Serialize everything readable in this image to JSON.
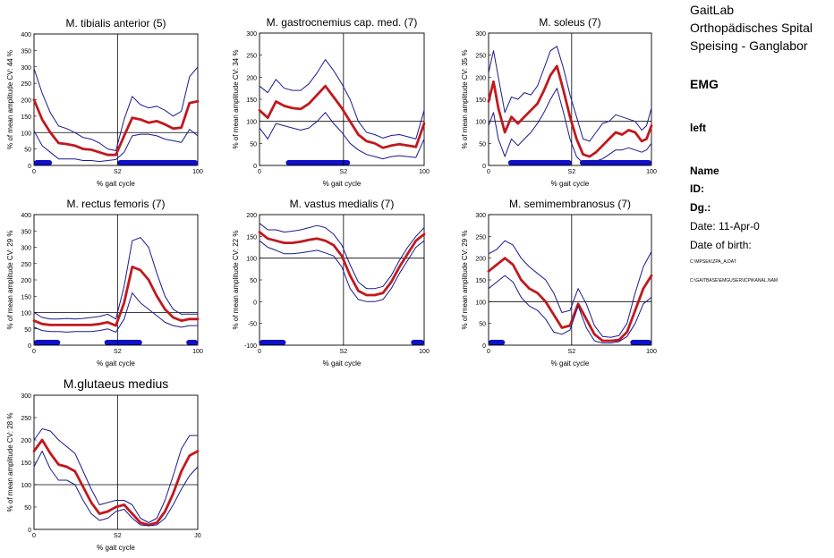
{
  "header": {
    "lab_lines": [
      "GaitLab",
      "Orthopädisches Spital",
      "Speising - Ganglabor"
    ],
    "section": "EMG",
    "side": "left",
    "name_label": "Name",
    "id_label": "ID:",
    "dg_label": "Dg.:",
    "date_line": "Date: 11-Apr-0",
    "dob_line": "Date of birth:",
    "path1": "C:\\MPSEK\\ZPA_A.DAT",
    "path2": "C:\\GAITBASE\\EMGUSER\\ICP\\KANAL.NAM"
  },
  "colors": {
    "mean_line": "#c0191e",
    "sd_lines": "#1a1a8c",
    "stance_bar": "#1010c8",
    "axes": "#000000"
  },
  "chart_data": [
    {
      "type": "line",
      "title": "M. tibialis anterior (5)",
      "ylabel": "% of mean amplitude  CV: 44 %",
      "xlabel": "% gait cycle",
      "x_ticks": [
        "0",
        "S2",
        "100"
      ],
      "y_ticks": [
        "0",
        "50",
        "100",
        "150",
        "200",
        "250",
        "300",
        "350",
        "400"
      ],
      "ylim": [
        0,
        400
      ],
      "xlim": [
        0,
        100
      ],
      "refline_y": 100,
      "refline_x_pct": 51,
      "stance_bars": [
        [
          0,
          11
        ],
        [
          51,
          100
        ]
      ],
      "x": [
        0,
        5,
        10,
        15,
        20,
        25,
        30,
        35,
        40,
        45,
        50,
        55,
        60,
        65,
        70,
        75,
        80,
        85,
        90,
        95,
        100
      ],
      "series": [
        {
          "name": "mean",
          "values": [
            200,
            140,
            100,
            68,
            65,
            60,
            50,
            48,
            40,
            32,
            32,
            90,
            145,
            140,
            130,
            135,
            125,
            112,
            115,
            190,
            195
          ]
        },
        {
          "name": "upper",
          "values": [
            295,
            220,
            160,
            120,
            112,
            100,
            85,
            80,
            68,
            50,
            45,
            140,
            210,
            185,
            175,
            180,
            168,
            150,
            165,
            270,
            300
          ]
        },
        {
          "name": "lower",
          "values": [
            105,
            60,
            40,
            20,
            20,
            20,
            15,
            15,
            12,
            15,
            18,
            40,
            90,
            95,
            95,
            90,
            80,
            75,
            70,
            110,
            90
          ]
        }
      ]
    },
    {
      "type": "line",
      "title": "M. gastrocnemius cap. med. (7)",
      "ylabel": "% of mean amplitude  CV: 34 %",
      "xlabel": "% gait cycle",
      "x_ticks": [
        "0",
        "S2",
        "100"
      ],
      "y_ticks": [
        "0",
        "50",
        "100",
        "150",
        "200",
        "250",
        "300"
      ],
      "ylim": [
        0,
        300
      ],
      "xlim": [
        0,
        100
      ],
      "refline_y": 100,
      "refline_x_pct": 51,
      "stance_bars": [
        [
          16,
          55
        ]
      ],
      "x": [
        0,
        5,
        10,
        15,
        20,
        25,
        30,
        35,
        40,
        45,
        50,
        55,
        60,
        65,
        70,
        75,
        80,
        85,
        90,
        95,
        100
      ],
      "series": [
        {
          "name": "mean",
          "values": [
            125,
            108,
            145,
            135,
            130,
            128,
            140,
            160,
            180,
            155,
            130,
            100,
            70,
            55,
            50,
            40,
            45,
            48,
            45,
            42,
            95
          ]
        },
        {
          "name": "upper",
          "values": [
            180,
            165,
            195,
            175,
            170,
            170,
            185,
            210,
            240,
            215,
            185,
            150,
            100,
            75,
            70,
            62,
            68,
            70,
            65,
            60,
            125
          ]
        },
        {
          "name": "lower",
          "values": [
            85,
            60,
            95,
            90,
            85,
            80,
            85,
            100,
            120,
            95,
            75,
            50,
            35,
            25,
            20,
            15,
            20,
            22,
            20,
            18,
            60
          ]
        }
      ]
    },
    {
      "type": "line",
      "title": "M. soleus (7)",
      "ylabel": "% of mean amplitude  CV: 35 %",
      "xlabel": "% gait cycle",
      "x_ticks": [
        "0",
        "S2",
        "100"
      ],
      "y_ticks": [
        "0",
        "50",
        "100",
        "150",
        "200",
        "250",
        "300"
      ],
      "ylim": [
        0,
        300
      ],
      "xlim": [
        0,
        100
      ],
      "refline_y": 100,
      "refline_x_pct": 51,
      "stance_bars": [
        [
          12,
          51
        ],
        [
          56,
          100
        ]
      ],
      "x": [
        0,
        3,
        6,
        10,
        14,
        18,
        22,
        26,
        30,
        34,
        38,
        42,
        46,
        50,
        54,
        58,
        62,
        66,
        70,
        74,
        78,
        82,
        86,
        90,
        94,
        97,
        100
      ],
      "series": [
        {
          "name": "mean",
          "values": [
            145,
            190,
            130,
            75,
            110,
            95,
            110,
            125,
            140,
            170,
            205,
            225,
            170,
            110,
            60,
            25,
            20,
            30,
            45,
            60,
            75,
            70,
            80,
            75,
            55,
            60,
            90
          ]
        },
        {
          "name": "upper",
          "values": [
            210,
            260,
            200,
            120,
            155,
            150,
            165,
            160,
            180,
            220,
            260,
            270,
            220,
            160,
            110,
            60,
            55,
            75,
            95,
            100,
            115,
            110,
            105,
            100,
            80,
            90,
            130
          ]
        },
        {
          "name": "lower",
          "values": [
            90,
            120,
            60,
            20,
            60,
            45,
            60,
            75,
            95,
            120,
            150,
            175,
            120,
            60,
            20,
            5,
            5,
            10,
            15,
            25,
            35,
            35,
            40,
            35,
            30,
            35,
            50
          ]
        }
      ]
    },
    {
      "type": "line",
      "title": "M. rectus femoris (7)",
      "ylabel": "% of mean amplitude  CV: 29 %",
      "xlabel": "% gait cycle",
      "x_ticks": [
        "0",
        "S2",
        "100"
      ],
      "y_ticks": [
        "0",
        "50",
        "100",
        "150",
        "200",
        "250",
        "300",
        "350",
        "400"
      ],
      "ylim": [
        0,
        400
      ],
      "xlim": [
        0,
        100
      ],
      "refline_y": 100,
      "refline_x_pct": 51,
      "stance_bars": [
        [
          0,
          16
        ],
        [
          43,
          66
        ],
        [
          93,
          100
        ]
      ],
      "x": [
        0,
        5,
        10,
        15,
        20,
        25,
        30,
        35,
        40,
        45,
        50,
        55,
        60,
        65,
        70,
        75,
        80,
        85,
        90,
        95,
        100
      ],
      "series": [
        {
          "name": "mean",
          "values": [
            75,
            65,
            62,
            62,
            62,
            62,
            62,
            62,
            65,
            70,
            60,
            130,
            240,
            230,
            200,
            150,
            110,
            85,
            75,
            80,
            80
          ]
        },
        {
          "name": "upper",
          "values": [
            100,
            85,
            80,
            80,
            82,
            80,
            82,
            85,
            88,
            95,
            80,
            180,
            320,
            330,
            300,
            220,
            150,
            110,
            95,
            95,
            95
          ]
        },
        {
          "name": "lower",
          "values": [
            55,
            45,
            42,
            42,
            40,
            42,
            42,
            42,
            45,
            50,
            40,
            80,
            160,
            130,
            110,
            90,
            70,
            60,
            55,
            60,
            60
          ]
        }
      ]
    },
    {
      "type": "line",
      "title": "M. vastus medialis (7)",
      "ylabel": "% of mean amplitude  CV: 22 %",
      "xlabel": "% gait cycle",
      "x_ticks": [
        "0",
        "S2",
        "100"
      ],
      "y_ticks": [
        "-100",
        "-50",
        "0",
        "50",
        "100",
        "150",
        "200"
      ],
      "ylim": [
        -100,
        200
      ],
      "xlim": [
        0,
        100
      ],
      "refline_y": 100,
      "refline_x_pct": 51,
      "stance_bars": [
        [
          0,
          16
        ],
        [
          92,
          100
        ]
      ],
      "x": [
        0,
        5,
        10,
        15,
        20,
        25,
        30,
        35,
        40,
        45,
        50,
        55,
        60,
        65,
        70,
        75,
        80,
        85,
        90,
        95,
        100
      ],
      "series": [
        {
          "name": "mean",
          "values": [
            160,
            145,
            140,
            135,
            135,
            138,
            142,
            145,
            140,
            130,
            105,
            60,
            25,
            15,
            15,
            20,
            45,
            80,
            110,
            140,
            155
          ]
        },
        {
          "name": "upper",
          "values": [
            180,
            165,
            165,
            160,
            162,
            165,
            170,
            175,
            170,
            155,
            130,
            85,
            45,
            30,
            30,
            35,
            60,
            95,
            125,
            150,
            170
          ]
        },
        {
          "name": "lower",
          "values": [
            140,
            125,
            118,
            110,
            110,
            112,
            115,
            118,
            112,
            105,
            80,
            30,
            5,
            0,
            0,
            5,
            30,
            65,
            95,
            125,
            140
          ]
        }
      ]
    },
    {
      "type": "line",
      "title": "M. semimembranosus (7)",
      "ylabel": "% of mean amplitude  CV: 29 %",
      "xlabel": "% gait cycle",
      "x_ticks": [
        "0",
        "S2",
        "100"
      ],
      "y_ticks": [
        "0",
        "50",
        "100",
        "150",
        "200",
        "250",
        "300"
      ],
      "ylim": [
        0,
        300
      ],
      "xlim": [
        0,
        100
      ],
      "refline_y": 100,
      "refline_x_pct": 51,
      "stance_bars": [
        [
          0,
          10
        ],
        [
          87,
          100
        ]
      ],
      "x": [
        0,
        5,
        10,
        15,
        20,
        25,
        30,
        35,
        40,
        45,
        50,
        55,
        60,
        65,
        70,
        75,
        80,
        85,
        90,
        95,
        100
      ],
      "series": [
        {
          "name": "mean",
          "values": [
            170,
            185,
            200,
            185,
            150,
            130,
            120,
            100,
            70,
            40,
            45,
            95,
            60,
            25,
            10,
            10,
            12,
            30,
            80,
            130,
            160
          ]
        },
        {
          "name": "upper",
          "values": [
            210,
            220,
            240,
            230,
            200,
            180,
            165,
            150,
            120,
            75,
            80,
            130,
            95,
            45,
            20,
            18,
            22,
            50,
            120,
            180,
            215
          ]
        },
        {
          "name": "lower",
          "values": [
            130,
            145,
            160,
            145,
            110,
            90,
            80,
            60,
            30,
            25,
            35,
            90,
            40,
            10,
            5,
            5,
            8,
            20,
            50,
            95,
            110
          ]
        }
      ]
    },
    {
      "type": "line",
      "title": "M.glutaeus medius",
      "ylabel": "% of mean amplitude  CV: 28 %",
      "xlabel": "% gait cycle",
      "x_ticks": [
        "0",
        "S2",
        "J0"
      ],
      "y_ticks": [
        "0",
        "50",
        "100",
        "150",
        "200",
        "250",
        "300"
      ],
      "ylim": [
        0,
        300
      ],
      "xlim": [
        0,
        100
      ],
      "refline_y": 100,
      "refline_x_pct": 51,
      "stance_bars": [],
      "x": [
        0,
        5,
        10,
        15,
        20,
        25,
        30,
        35,
        40,
        45,
        50,
        55,
        60,
        65,
        70,
        75,
        80,
        85,
        90,
        95,
        100
      ],
      "series": [
        {
          "name": "mean",
          "values": [
            175,
            200,
            170,
            145,
            140,
            130,
            95,
            60,
            35,
            40,
            50,
            55,
            35,
            15,
            10,
            15,
            40,
            80,
            130,
            165,
            175
          ]
        },
        {
          "name": "upper",
          "values": [
            200,
            225,
            220,
            200,
            185,
            170,
            130,
            90,
            55,
            60,
            65,
            65,
            55,
            25,
            15,
            25,
            65,
            120,
            180,
            210,
            210
          ]
        },
        {
          "name": "lower",
          "values": [
            140,
            175,
            135,
            110,
            110,
            100,
            65,
            35,
            20,
            25,
            40,
            45,
            25,
            10,
            8,
            10,
            25,
            55,
            90,
            120,
            140
          ]
        }
      ]
    }
  ]
}
